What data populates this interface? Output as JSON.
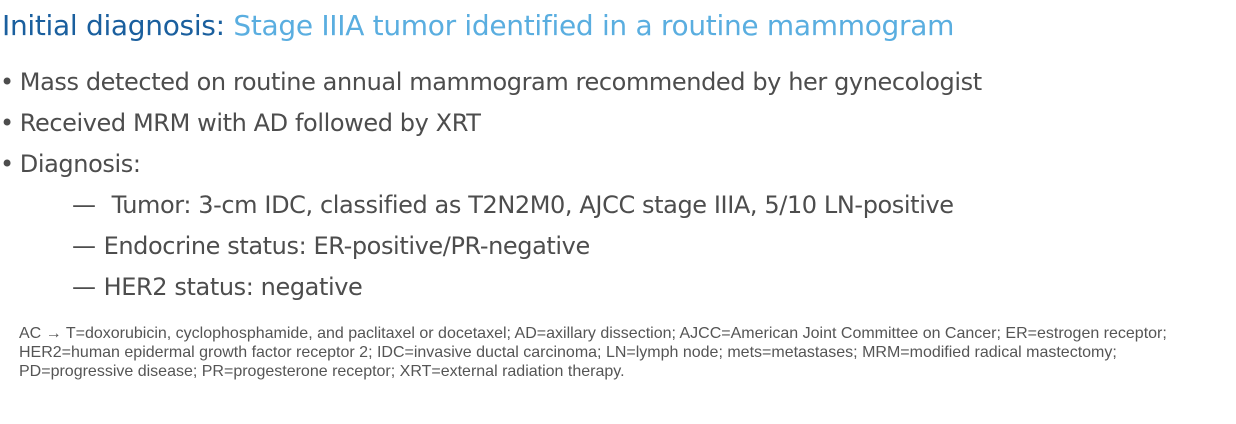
{
  "title": {
    "lead": "Initial diagnosis:",
    "rest": "Stage IIIA tumor identified in a routine mammogram"
  },
  "bullets": [
    "Mass detected on routine annual mammogram recommended by her gynecologist",
    "Received MRM with AD followed by XRT",
    "Diagnosis:"
  ],
  "sub_bullets": [
    "Tumor: 3-cm IDC, classified as T2N2M0, AJCC stage IIIA, 5/10 LN-positive",
    "Endocrine status: ER-positive/PR-negative",
    "HER2 status: negative"
  ],
  "bullet_glyph": "•",
  "dash_glyph": "—",
  "footnote": "AC → T=doxorubicin, cyclophosphamide, and paclitaxel or docetaxel; AD=axillary dissection; AJCC=American Joint Committee on Cancer; ER=estrogen receptor; HER2=human epidermal growth factor receptor 2; IDC=invasive ductal carcinoma; LN=lymph node; mets=metastases; MRM=modified radical mastectomy; PD=progressive disease; PR=progesterone receptor; XRT=external radiation therapy.",
  "colors": {
    "title_lead": "#1a5f9e",
    "title_rest": "#5aaee0",
    "body_text": "#4d4d4d",
    "footnote_text": "#555555"
  }
}
